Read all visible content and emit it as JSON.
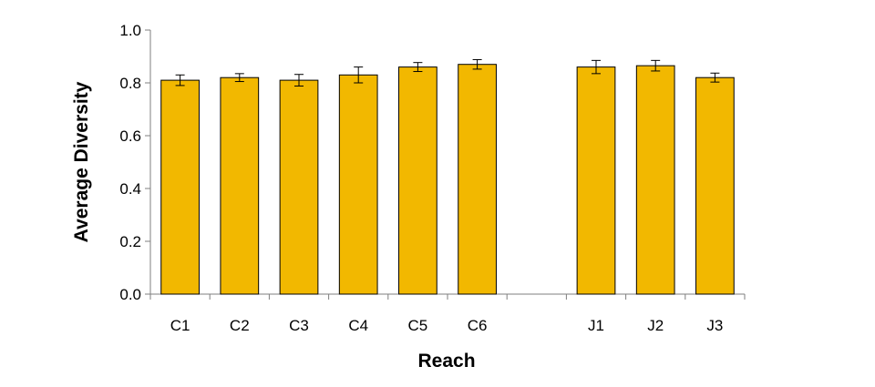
{
  "chart_data": {
    "type": "bar",
    "categories": [
      "C1",
      "C2",
      "C3",
      "C4",
      "C5",
      "C6",
      "",
      "J1",
      "J2",
      "J3"
    ],
    "values": [
      0.81,
      0.82,
      0.81,
      0.83,
      0.86,
      0.87,
      null,
      0.86,
      0.865,
      0.82
    ],
    "error": [
      0.02,
      0.015,
      0.022,
      0.03,
      0.017,
      0.018,
      null,
      0.025,
      0.02,
      0.017
    ],
    "xlabel": "Reach",
    "ylabel": "Average Diversity",
    "ylim": [
      0,
      1.0
    ],
    "yticks": [
      "0.0",
      "0.2",
      "0.4",
      "0.6",
      "0.8",
      "1.0"
    ],
    "grid": false,
    "bar_color": "#F2B800",
    "edge_color": "#000000"
  }
}
